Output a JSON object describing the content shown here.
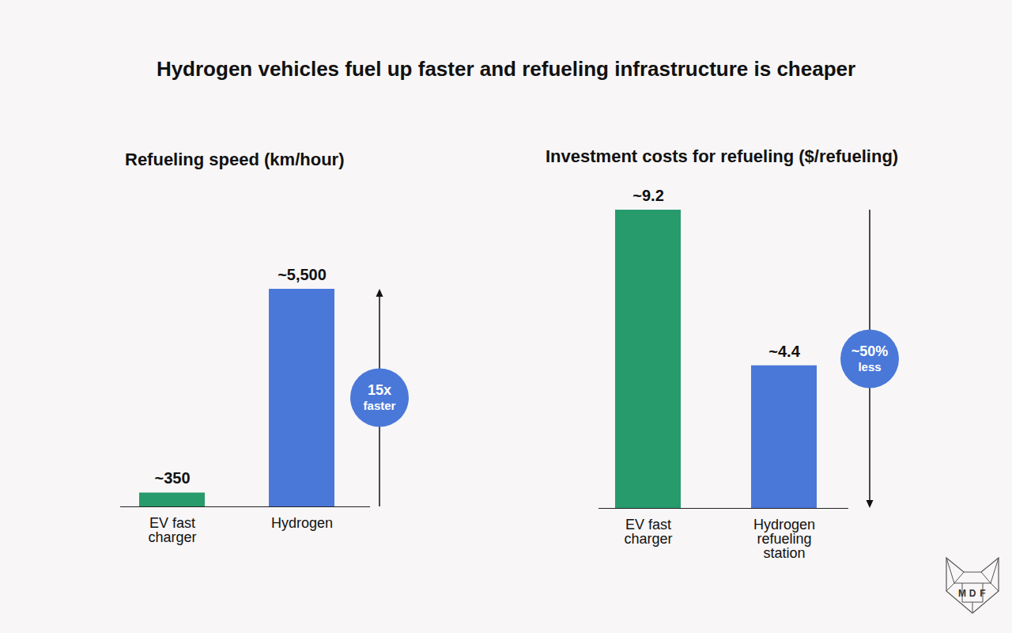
{
  "title": "Hydrogen vehicles fuel up faster and refueling infrastructure is cheaper",
  "watermark": "MDF",
  "chart_data": [
    {
      "type": "bar",
      "title": "Refueling speed (km/hour)",
      "categories": [
        "EV fast charger",
        "Hydrogen"
      ],
      "values": [
        350,
        5500
      ],
      "value_labels": [
        "~350",
        "~5,500"
      ],
      "colors": [
        "#279b6b",
        "#4a78d9"
      ],
      "ylim": [
        0,
        5500
      ],
      "data_labels": true,
      "tick_labels": "x",
      "annotation": [
        "15x",
        "faster"
      ]
    },
    {
      "type": "bar",
      "title": "Investment costs for refueling ($/refueling)",
      "categories": [
        "EV fast charger",
        "Hydrogen refueling station"
      ],
      "values": [
        9.2,
        4.4
      ],
      "value_labels": [
        "~9.2",
        "~4.4"
      ],
      "colors": [
        "#279b6b",
        "#4a78d9"
      ],
      "ylim": [
        0,
        9.2
      ],
      "data_labels": true,
      "tick_labels": "x",
      "annotation": [
        "~50%",
        "less"
      ]
    }
  ]
}
